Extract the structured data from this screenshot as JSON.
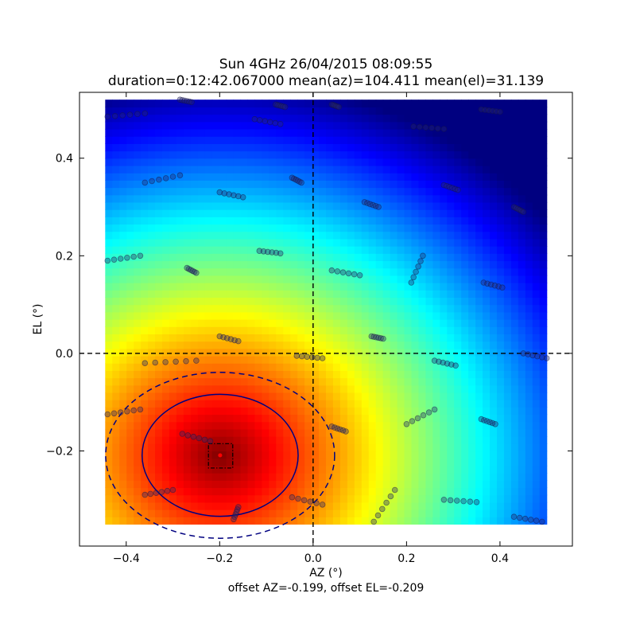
{
  "chart_data": {
    "type": "heatmap",
    "title_line1": "Sun 4GHz 26/04/2015 08:09:55",
    "title_line2": "duration=0:12:42.067000 mean(az)=104.411 mean(el)=31.139",
    "xlabel": "AZ (°)",
    "ylabel": "EL (°)",
    "footer": "offset AZ=-0.199, offset EL=-0.209",
    "xlim": [
      -0.5,
      0.555
    ],
    "ylim": [
      -0.395,
      0.535
    ],
    "xticks": [
      -0.4,
      -0.2,
      0.0,
      0.2,
      0.4
    ],
    "xtick_labels": [
      "−0.4",
      "−0.2",
      "0.0",
      "0.2",
      "0.4"
    ],
    "yticks": [
      -0.2,
      0.0,
      0.2,
      0.4
    ],
    "ytick_labels": [
      "−0.2",
      "0.0",
      "0.2",
      "0.4"
    ],
    "heatmap": {
      "x_range": [
        -0.445,
        0.5
      ],
      "y_range": [
        -0.35,
        0.52
      ],
      "colormap": "jet",
      "peak": [
        -0.199,
        -0.209
      ]
    },
    "crosshair": {
      "x": 0.0,
      "y": 0.0,
      "style": "dashed",
      "color": "#000000"
    },
    "beam_contours": [
      {
        "center": [
          -0.199,
          -0.209
        ],
        "radius": [
          0.167,
          0.125
        ],
        "style": "solid",
        "color": "#000080"
      },
      {
        "center": [
          -0.199,
          -0.209
        ],
        "radius": [
          0.245,
          0.17
        ],
        "style": "dashed",
        "color": "#000080"
      }
    ],
    "peak_box": {
      "x": [
        -0.224,
        -0.172
      ],
      "y": [
        -0.235,
        -0.185
      ],
      "style": "dashdot",
      "color": "#000000"
    },
    "peak_marker": {
      "x": -0.199,
      "y": -0.209,
      "color": "#ff0000"
    },
    "scan_tracks": [
      {
        "x0": -0.44,
        "y0": 0.485,
        "x1": -0.36,
        "y1": 0.492
      },
      {
        "x0": -0.285,
        "y0": 0.52,
        "x1": -0.26,
        "y1": 0.515
      },
      {
        "x0": -0.08,
        "y0": 0.51,
        "x1": -0.06,
        "y1": 0.505
      },
      {
        "x0": 0.04,
        "y0": 0.51,
        "x1": 0.055,
        "y1": 0.505
      },
      {
        "x0": 0.36,
        "y0": 0.5,
        "x1": 0.4,
        "y1": 0.495
      },
      {
        "x0": -0.36,
        "y0": 0.35,
        "x1": -0.285,
        "y1": 0.365
      },
      {
        "x0": -0.2,
        "y0": 0.33,
        "x1": -0.15,
        "y1": 0.32
      },
      {
        "x0": -0.045,
        "y0": 0.36,
        "x1": -0.025,
        "y1": 0.35
      },
      {
        "x0": -0.125,
        "y0": 0.48,
        "x1": -0.07,
        "y1": 0.47
      },
      {
        "x0": 0.215,
        "y0": 0.465,
        "x1": 0.28,
        "y1": 0.46
      },
      {
        "x0": 0.11,
        "y0": 0.31,
        "x1": 0.14,
        "y1": 0.3
      },
      {
        "x0": 0.28,
        "y0": 0.345,
        "x1": 0.31,
        "y1": 0.335
      },
      {
        "x0": 0.43,
        "y0": 0.3,
        "x1": 0.45,
        "y1": 0.29
      },
      {
        "x0": -0.44,
        "y0": 0.19,
        "x1": -0.37,
        "y1": 0.2
      },
      {
        "x0": -0.27,
        "y0": 0.175,
        "x1": -0.25,
        "y1": 0.165
      },
      {
        "x0": -0.115,
        "y0": 0.21,
        "x1": -0.07,
        "y1": 0.205
      },
      {
        "x0": 0.04,
        "y0": 0.17,
        "x1": 0.1,
        "y1": 0.16
      },
      {
        "x0": 0.21,
        "y0": 0.145,
        "x1": 0.235,
        "y1": 0.2
      },
      {
        "x0": 0.365,
        "y0": 0.145,
        "x1": 0.405,
        "y1": 0.135
      },
      {
        "x0": -0.2,
        "y0": 0.035,
        "x1": -0.16,
        "y1": 0.025
      },
      {
        "x0": 0.125,
        "y0": 0.035,
        "x1": 0.15,
        "y1": 0.03
      },
      {
        "x0": -0.36,
        "y0": -0.02,
        "x1": -0.25,
        "y1": -0.015
      },
      {
        "x0": -0.035,
        "y0": -0.005,
        "x1": 0.02,
        "y1": -0.01
      },
      {
        "x0": 0.26,
        "y0": -0.015,
        "x1": 0.305,
        "y1": -0.025
      },
      {
        "x0": 0.45,
        "y0": 0.0,
        "x1": 0.5,
        "y1": -0.01
      },
      {
        "x0": -0.44,
        "y0": -0.125,
        "x1": -0.37,
        "y1": -0.115
      },
      {
        "x0": -0.28,
        "y0": -0.165,
        "x1": -0.22,
        "y1": -0.18
      },
      {
        "x0": 0.04,
        "y0": -0.15,
        "x1": 0.07,
        "y1": -0.16
      },
      {
        "x0": 0.2,
        "y0": -0.145,
        "x1": 0.26,
        "y1": -0.115
      },
      {
        "x0": 0.36,
        "y0": -0.135,
        "x1": 0.39,
        "y1": -0.145
      },
      {
        "x0": -0.36,
        "y0": -0.29,
        "x1": -0.3,
        "y1": -0.28
      },
      {
        "x0": -0.16,
        "y0": -0.315,
        "x1": -0.17,
        "y1": -0.34
      },
      {
        "x0": -0.045,
        "y0": -0.295,
        "x1": 0.02,
        "y1": -0.31
      },
      {
        "x0": 0.13,
        "y0": -0.345,
        "x1": 0.175,
        "y1": -0.28
      },
      {
        "x0": 0.28,
        "y0": -0.3,
        "x1": 0.35,
        "y1": -0.305
      },
      {
        "x0": 0.43,
        "y0": -0.335,
        "x1": 0.49,
        "y1": -0.345
      }
    ]
  }
}
